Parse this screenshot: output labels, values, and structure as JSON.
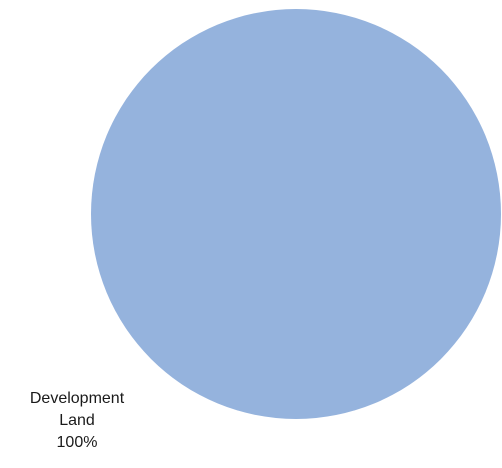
{
  "chart_data": {
    "type": "pie",
    "title": "",
    "slices": [
      {
        "label_lines": [
          "Development",
          "Land"
        ],
        "value": 100,
        "value_label": "100%",
        "color": "#95b3dd"
      }
    ],
    "legend": "none"
  }
}
